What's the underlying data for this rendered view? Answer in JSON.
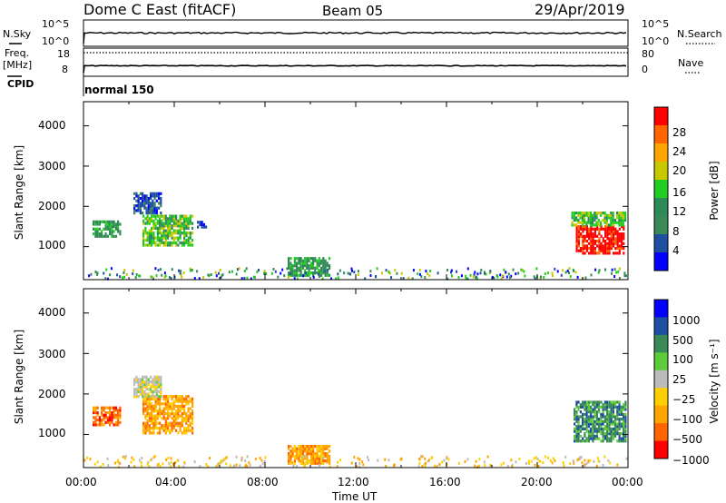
{
  "header": {
    "station": "Dome C East (fitACF)",
    "beam": "Beam 05",
    "date": "29/Apr/2019"
  },
  "summary_panels": {
    "nsky_label": "N.Sky",
    "nsearch_label": "N.Search",
    "freq_label_1": "Freq.",
    "freq_label_2": "[MHz]",
    "nave_label": "Nave",
    "cpid_label": "CPID",
    "cpid_value": "normal 150",
    "count_ticks_left": [
      "10^5",
      "10^0"
    ],
    "count_ticks_right": [
      "10^5",
      "10^0"
    ],
    "freq_ticks": [
      "18",
      "8"
    ],
    "nave_ticks": [
      "80",
      "0"
    ]
  },
  "colors": {
    "power": [
      "#0000ff",
      "#1f4fa0",
      "#3a8a56",
      "#2e8b57",
      "#22cc22",
      "#c8c800",
      "#ffa500",
      "#ff6600",
      "#ff0000"
    ],
    "velocity": [
      "#ff0000",
      "#ff6600",
      "#ffa500",
      "#ffd000",
      "#bbbbbb",
      "#5ecc3a",
      "#3a8a56",
      "#1f4fa0",
      "#0000ff"
    ]
  },
  "chart_data": [
    {
      "type": "heatmap",
      "name": "power",
      "ylabel": "Slant Range [km]",
      "colorbar_label": "Power [dB]",
      "colorbar_ticks": [
        "28",
        "24",
        "20",
        "16",
        "12",
        "8",
        "4"
      ],
      "ylim": [
        180,
        4600
      ],
      "yticks": [
        "1000",
        "2000",
        "3000",
        "4000"
      ],
      "regions": [
        {
          "t0": 0.4,
          "t1": 1.6,
          "r0": 1220,
          "r1": 1600,
          "level": 3
        },
        {
          "t0": 2.6,
          "t1": 4.8,
          "r0": 1000,
          "r1": 1750,
          "level": 4
        },
        {
          "t0": 2.2,
          "t1": 3.4,
          "r0": 1800,
          "r1": 2300,
          "level": 1
        },
        {
          "t0": 5.0,
          "t1": 5.4,
          "r0": 1450,
          "r1": 1600,
          "level": 1
        },
        {
          "t0": 9.0,
          "t1": 10.8,
          "r0": 250,
          "r1": 700,
          "level": 3
        },
        {
          "t0": 21.7,
          "t1": 23.8,
          "r0": 800,
          "r1": 1500,
          "level": 8
        },
        {
          "t0": 21.5,
          "t1": 23.9,
          "r0": 1500,
          "r1": 1800,
          "level": 4
        }
      ]
    },
    {
      "type": "heatmap",
      "name": "velocity",
      "ylabel": "Slant Range [km]",
      "colorbar_label": "Velocity [m s⁻¹]",
      "colorbar_ticks": [
        "1000",
        "500",
        "100",
        "25",
        "−25",
        "−100",
        "−500",
        "−1000"
      ],
      "ylim": [
        180,
        4600
      ],
      "yticks": [
        "1000",
        "2000",
        "3000",
        "4000"
      ],
      "xlabel": "Time UT",
      "xticks": [
        "00:00",
        "04:00",
        "08:00",
        "12:00",
        "16:00",
        "20:00",
        "00:00"
      ],
      "regions": [
        {
          "t0": 0.4,
          "t1": 1.6,
          "r0": 1200,
          "r1": 1620,
          "level": 1
        },
        {
          "t0": 2.6,
          "t1": 4.8,
          "r0": 1000,
          "r1": 1900,
          "level": 2
        },
        {
          "t0": 2.2,
          "t1": 3.4,
          "r0": 1900,
          "r1": 2400,
          "level": 4
        },
        {
          "t0": 9.0,
          "t1": 10.8,
          "r0": 250,
          "r1": 700,
          "level": 2
        },
        {
          "t0": 21.6,
          "t1": 23.9,
          "r0": 800,
          "r1": 1800,
          "level": 6
        }
      ]
    }
  ]
}
